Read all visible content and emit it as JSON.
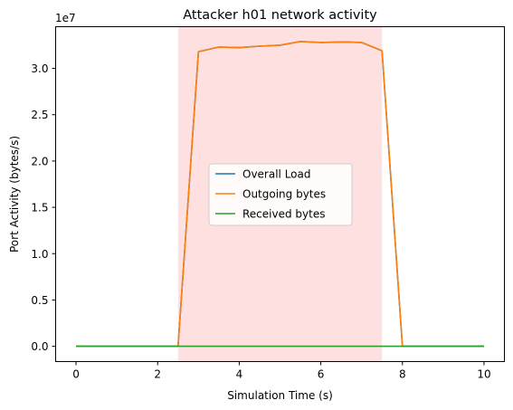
{
  "chart_data": {
    "type": "line",
    "title": "Attacker h01 network activity",
    "xlabel": "Simulation Time (s)",
    "ylabel": "Port Activity (bytes/s)",
    "y_exponent_label": "1e7",
    "xlim": [
      -0.5,
      10.5
    ],
    "ylim": [
      -1650000,
      34500000
    ],
    "x_ticks": [
      0,
      2,
      4,
      6,
      8,
      10
    ],
    "x_tick_labels": [
      "0",
      "2",
      "4",
      "6",
      "8",
      "10"
    ],
    "y_ticks": [
      0,
      5000000,
      10000000,
      15000000,
      20000000,
      25000000,
      30000000
    ],
    "y_tick_labels": [
      "0.0",
      "0.5",
      "1.0",
      "1.5",
      "2.0",
      "2.5",
      "3.0"
    ],
    "grid": false,
    "legend_position": "center",
    "shaded_region": {
      "x_start": 2.5,
      "x_end": 7.5,
      "color": "#ffe0e0"
    },
    "x": [
      0,
      0.5,
      1,
      1.5,
      2,
      2.5,
      3,
      3.5,
      4,
      4.5,
      5,
      5.5,
      6,
      6.5,
      7,
      7.5,
      8,
      8.5,
      9,
      9.5,
      10
    ],
    "series": [
      {
        "name": "Overall Load",
        "color": "#1f77b4",
        "values": [
          0,
          0,
          0,
          0,
          0,
          0,
          31800000,
          32300000,
          32250000,
          32400000,
          32500000,
          32900000,
          32800000,
          32850000,
          32800000,
          31900000,
          0,
          0,
          0,
          0,
          0
        ]
      },
      {
        "name": "Outgoing bytes",
        "color": "#ff7f0e",
        "values": [
          0,
          0,
          0,
          0,
          0,
          0,
          31800000,
          32300000,
          32250000,
          32400000,
          32500000,
          32900000,
          32800000,
          32850000,
          32800000,
          31900000,
          0,
          0,
          0,
          0,
          0
        ]
      },
      {
        "name": "Received bytes",
        "color": "#2ca02c",
        "values": [
          0,
          0,
          0,
          0,
          0,
          0,
          0,
          0,
          0,
          0,
          0,
          0,
          0,
          0,
          0,
          0,
          0,
          0,
          0,
          0,
          0
        ]
      }
    ]
  }
}
